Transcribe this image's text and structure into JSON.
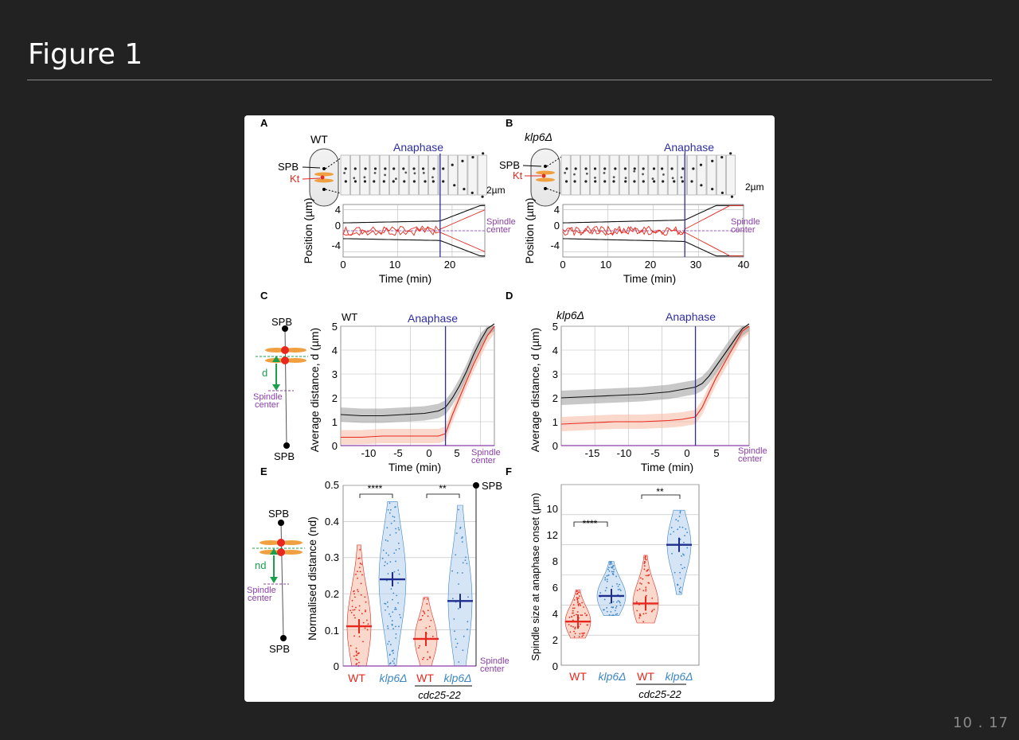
{
  "slide": {
    "title": "Figure 1",
    "page_number": "10 . 17"
  },
  "panels": {
    "A": {
      "letter": "A",
      "strain": "WT",
      "event": "Anaphase",
      "spb_label": "SPB",
      "kt_label": "Kt",
      "scale_bar": "2µm",
      "ylabel": "Position (µm)",
      "xlabel": "Time (min)",
      "yticks": [
        "4",
        "0",
        "-4"
      ],
      "xticks": [
        "0",
        "10",
        "20"
      ],
      "spindle_center_lines": [
        "Spindle",
        "center"
      ]
    },
    "B": {
      "letter": "B",
      "strain": "klp6Δ",
      "event": "Anaphase",
      "spb_label": "SPB",
      "kt_label": "Kt",
      "scale_bar": "2µm",
      "ylabel": "Position (µm)",
      "xlabel": "Time (min)",
      "yticks": [
        "4",
        "0",
        "-4"
      ],
      "xticks": [
        "0",
        "10",
        "20",
        "30",
        "40"
      ],
      "spindle_center_lines": [
        "Spindle",
        "center"
      ]
    },
    "C": {
      "letter": "C",
      "strain": "WT",
      "event": "Anaphase",
      "spb_top": "SPB",
      "spb_bottom": "SPB",
      "d_label": "d",
      "spindle_center_lines": [
        "Spindle",
        "center"
      ],
      "ylabel": "Average distance, d (µm)",
      "xlabel": "Time (min)",
      "yticks": [
        "5",
        "4",
        "3",
        "2",
        "1",
        "0"
      ],
      "xticks": [
        "-10",
        "-5",
        "0",
        "5"
      ]
    },
    "D": {
      "letter": "D",
      "strain": "klp6Δ",
      "event": "Anaphase",
      "ylabel": "Average distance, d (µm)",
      "xlabel": "Time (min)",
      "yticks": [
        "5",
        "4",
        "3",
        "2",
        "1",
        "0"
      ],
      "xticks": [
        "-15",
        "-10",
        "-5",
        "0",
        "5"
      ],
      "spindle_center_lines": [
        "Spindle",
        "center"
      ]
    },
    "E": {
      "letter": "E",
      "spb_top": "SPB",
      "spb_bottom": "SPB",
      "nd_label": "nd",
      "spindle_center_lines": [
        "Spindle",
        "center"
      ],
      "ylabel": "Normalised distance (nd)",
      "spb_right": "SPB",
      "yticks": [
        "0.5",
        "0.4",
        "0.3",
        "0.2",
        "0.1",
        "0"
      ],
      "groups": [
        "WT",
        "klp6Δ",
        "WT",
        "klp6Δ"
      ],
      "background": "cdc25-22",
      "significance": [
        "****",
        "**"
      ]
    },
    "F": {
      "letter": "F",
      "ylabel": "Spindle size at anaphase onset (µm)",
      "yticks": [
        "10",
        "8",
        "6",
        "4",
        "2",
        "0"
      ],
      "ytick_minor": "12",
      "groups": [
        "WT",
        "klp6Δ",
        "WT",
        "klp6Δ"
      ],
      "background": "cdc25-22",
      "significance": [
        "****",
        "**"
      ]
    }
  },
  "colors": {
    "wt": "#e8281e",
    "mutant": "#3d86c6",
    "anaphase_line": "#2e2e9e",
    "spindle_center": "#8b3fa8",
    "kt_green": "#19a04b",
    "kt_orange": "#f0a040"
  },
  "chart_data": [
    {
      "type": "line",
      "panel": "C",
      "xlabel": "Time (min)",
      "ylabel": "Average distance, d (µm)",
      "xlim": [
        -15,
        7
      ],
      "ylim": [
        0,
        5
      ],
      "series": [
        {
          "name": "SPB",
          "x": [
            -15,
            -12,
            -9,
            -6,
            -3,
            -1,
            0,
            1,
            2,
            3,
            4,
            5,
            6,
            7
          ],
          "y": [
            1.3,
            1.25,
            1.25,
            1.3,
            1.35,
            1.45,
            1.6,
            2.0,
            2.5,
            3.1,
            3.8,
            4.4,
            4.9,
            5.1
          ]
        },
        {
          "name": "Kt",
          "x": [
            -15,
            -12,
            -9,
            -6,
            -3,
            -1,
            0,
            1,
            2,
            3,
            4,
            5,
            6,
            7
          ],
          "y": [
            0.35,
            0.35,
            0.4,
            0.4,
            0.4,
            0.4,
            0.5,
            1.3,
            2.0,
            2.7,
            3.4,
            4.0,
            4.6,
            5.0
          ]
        }
      ]
    },
    {
      "type": "line",
      "panel": "D",
      "xlabel": "Time (min)",
      "ylabel": "Average distance, d (µm)",
      "xlim": [
        -20,
        8
      ],
      "ylim": [
        0,
        5
      ],
      "series": [
        {
          "name": "SPB",
          "x": [
            -20,
            -16,
            -12,
            -8,
            -4,
            -2,
            0,
            1,
            2,
            3,
            4,
            5,
            6,
            7,
            8
          ],
          "y": [
            2.0,
            2.05,
            2.1,
            2.15,
            2.25,
            2.35,
            2.45,
            2.6,
            2.9,
            3.3,
            3.7,
            4.1,
            4.5,
            4.9,
            5.1
          ]
        },
        {
          "name": "Kt",
          "x": [
            -20,
            -16,
            -12,
            -8,
            -4,
            -2,
            0,
            1,
            2,
            3,
            4,
            5,
            6,
            7,
            8
          ],
          "y": [
            0.9,
            0.95,
            1.0,
            1.0,
            1.05,
            1.1,
            1.2,
            1.6,
            2.2,
            2.8,
            3.3,
            3.8,
            4.3,
            4.8,
            5.0
          ]
        }
      ]
    },
    {
      "type": "scatter",
      "panel": "E",
      "ylabel": "Normalised distance (nd)",
      "categories": [
        "WT",
        "klp6Δ",
        "WT cdc25-22",
        "klp6Δ cdc25-22"
      ],
      "values": [
        0.11,
        0.24,
        0.075,
        0.18
      ],
      "ylim": [
        0,
        0.5
      ]
    },
    {
      "type": "scatter",
      "panel": "F",
      "ylabel": "Spindle size at anaphase onset (µm)",
      "categories": [
        "WT",
        "klp6Δ",
        "WT cdc25-22",
        "klp6Δ cdc25-22"
      ],
      "values": [
        2.9,
        4.6,
        4.1,
        8.0
      ],
      "ylim": [
        0,
        12
      ]
    }
  ]
}
